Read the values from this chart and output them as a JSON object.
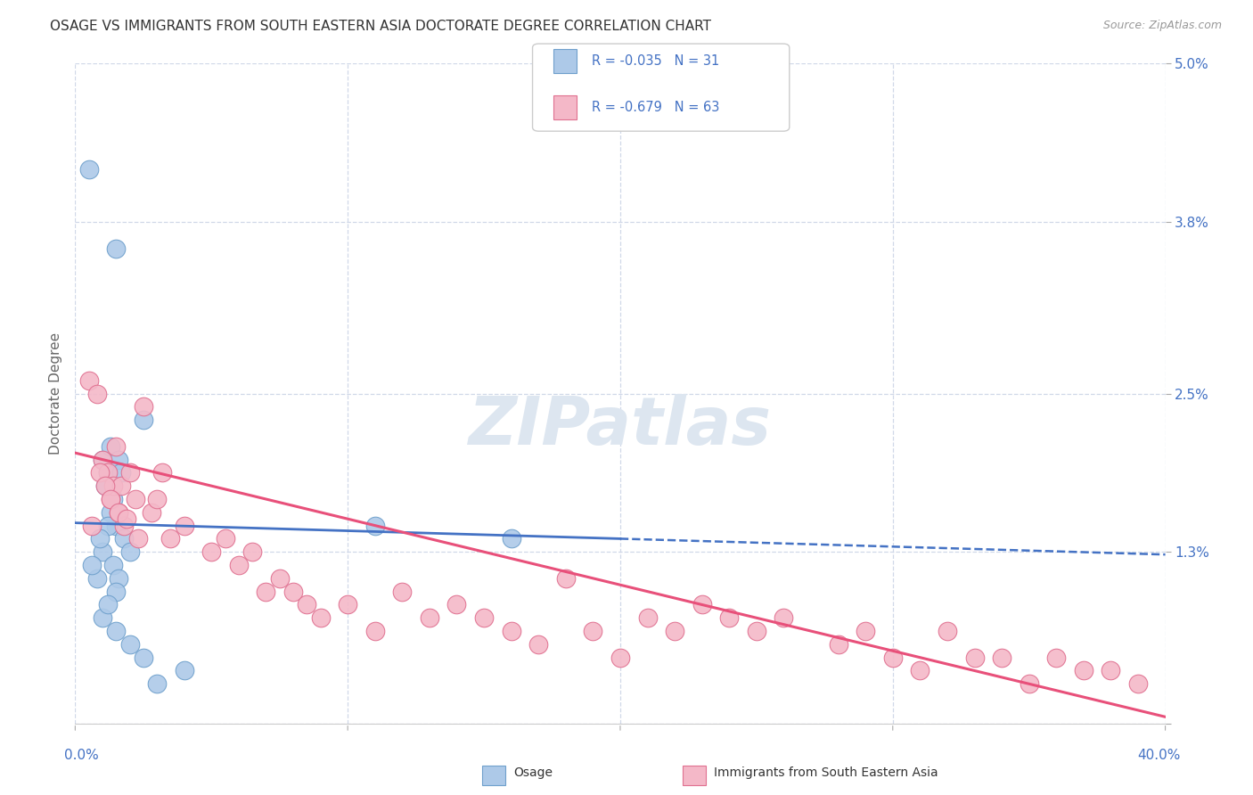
{
  "title": "OSAGE VS IMMIGRANTS FROM SOUTH EASTERN ASIA DOCTORATE DEGREE CORRELATION CHART",
  "source": "Source: ZipAtlas.com",
  "ylabel": "Doctorate Degree",
  "ylabel_right_ticks": [
    0.0,
    1.3,
    2.5,
    3.8,
    5.0
  ],
  "ylabel_right_labels": [
    "",
    "1.3%",
    "2.5%",
    "3.8%",
    "5.0%"
  ],
  "xlim": [
    0.0,
    40.0
  ],
  "ylim": [
    0.0,
    5.0
  ],
  "blue_color": "#adc9e8",
  "blue_edge": "#6fa0cc",
  "pink_color": "#f4b8c8",
  "pink_edge": "#e07090",
  "trend_blue": "#4472c4",
  "trend_pink": "#e8507a",
  "grid_color": "#d0d8e8",
  "background_color": "#ffffff",
  "watermark_color": "#dde6f0",
  "osage_x": [
    0.5,
    1.5,
    1.0,
    1.2,
    1.3,
    1.1,
    1.4,
    1.6,
    1.7,
    1.5,
    1.3,
    1.8,
    1.2,
    1.0,
    0.9,
    1.4,
    1.6,
    2.0,
    1.5,
    2.5,
    0.8,
    1.0,
    1.2,
    1.5,
    2.0,
    2.5,
    3.0,
    4.0,
    11.0,
    16.0,
    0.6
  ],
  "osage_y": [
    4.2,
    3.6,
    2.0,
    1.9,
    2.1,
    1.8,
    1.7,
    2.0,
    1.9,
    1.5,
    1.6,
    1.4,
    1.5,
    1.3,
    1.4,
    1.2,
    1.1,
    1.3,
    1.0,
    2.3,
    1.1,
    0.8,
    0.9,
    0.7,
    0.6,
    0.5,
    0.3,
    0.4,
    1.5,
    1.4,
    1.2
  ],
  "sea_x": [
    0.5,
    0.8,
    1.0,
    1.2,
    1.3,
    1.4,
    1.5,
    1.6,
    1.7,
    1.8,
    2.0,
    2.2,
    2.5,
    2.8,
    3.0,
    3.5,
    4.0,
    5.0,
    5.5,
    6.0,
    6.5,
    7.0,
    7.5,
    8.0,
    8.5,
    9.0,
    10.0,
    11.0,
    12.0,
    13.0,
    14.0,
    15.0,
    16.0,
    17.0,
    18.0,
    19.0,
    20.0,
    21.0,
    22.0,
    23.0,
    24.0,
    25.0,
    26.0,
    28.0,
    29.0,
    30.0,
    31.0,
    32.0,
    33.0,
    34.0,
    35.0,
    36.0,
    37.0,
    38.0,
    39.0,
    0.6,
    0.9,
    1.1,
    1.3,
    1.6,
    1.9,
    2.3,
    3.2
  ],
  "sea_y": [
    2.6,
    2.5,
    2.0,
    1.9,
    1.7,
    1.8,
    2.1,
    1.6,
    1.8,
    1.5,
    1.9,
    1.7,
    2.4,
    1.6,
    1.7,
    1.4,
    1.5,
    1.3,
    1.4,
    1.2,
    1.3,
    1.0,
    1.1,
    1.0,
    0.9,
    0.8,
    0.9,
    0.7,
    1.0,
    0.8,
    0.9,
    0.8,
    0.7,
    0.6,
    1.1,
    0.7,
    0.5,
    0.8,
    0.7,
    0.9,
    0.8,
    0.7,
    0.8,
    0.6,
    0.7,
    0.5,
    0.4,
    0.7,
    0.5,
    0.5,
    0.3,
    0.5,
    0.4,
    0.4,
    0.3,
    1.5,
    1.9,
    1.8,
    1.7,
    1.6,
    1.55,
    1.4,
    1.9
  ],
  "blue_trend_intercept": 1.52,
  "blue_trend_slope": -0.006,
  "blue_solid_end": 20.0,
  "pink_trend_intercept": 2.05,
  "pink_trend_slope": -0.05
}
